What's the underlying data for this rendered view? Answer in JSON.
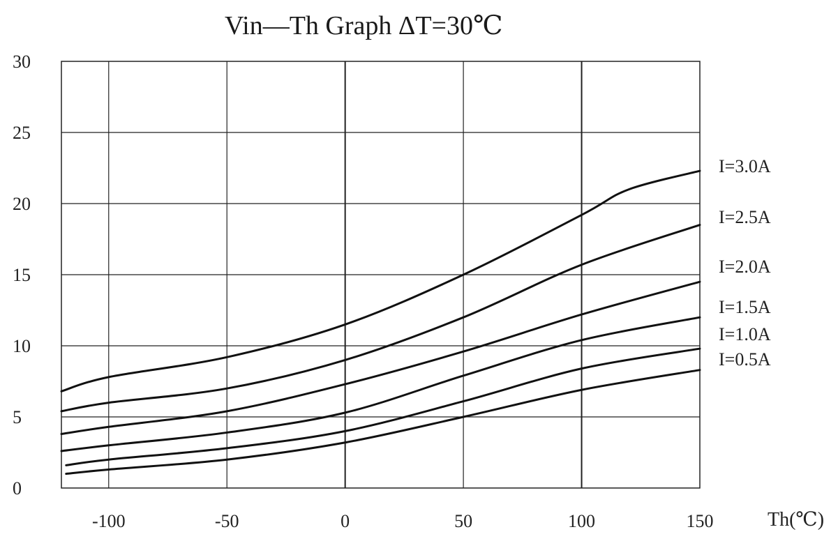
{
  "chart_data": {
    "type": "line",
    "title": "Vin—Th Graph  ΔT=30℃",
    "xlabel": "Th(℃)",
    "ylabel": "",
    "xlim": [
      -120,
      150
    ],
    "ylim": [
      0,
      30
    ],
    "x_ticks": [
      "-100",
      "-50",
      "0",
      "50",
      "100",
      "150"
    ],
    "x_tick_values": [
      -100,
      -50,
      0,
      50,
      100,
      150
    ],
    "y_ticks": [
      "0",
      "5",
      "10",
      "15",
      "20",
      "25",
      "30"
    ],
    "y_tick_values": [
      0,
      5,
      10,
      15,
      20,
      25,
      30
    ],
    "grid": true,
    "legend": "inline labels at right end of curves",
    "series": [
      {
        "name": "I=3.0A",
        "x": [
          -120,
          -100,
          -50,
          0,
          50,
          100,
          120,
          150
        ],
        "y": [
          6.8,
          7.8,
          9.2,
          11.5,
          15.0,
          19.2,
          21.0,
          22.3
        ]
      },
      {
        "name": "I=2.5A",
        "x": [
          -120,
          -100,
          -50,
          0,
          50,
          100,
          150
        ],
        "y": [
          5.4,
          6.0,
          7.0,
          9.0,
          12.0,
          15.7,
          18.5
        ]
      },
      {
        "name": "I=2.0A",
        "x": [
          -120,
          -100,
          -50,
          0,
          50,
          100,
          150
        ],
        "y": [
          3.8,
          4.3,
          5.4,
          7.3,
          9.6,
          12.2,
          14.5
        ]
      },
      {
        "name": "I=1.5A",
        "x": [
          -120,
          -100,
          -50,
          0,
          50,
          100,
          150
        ],
        "y": [
          2.6,
          3.0,
          3.9,
          5.3,
          7.9,
          10.4,
          12.0
        ]
      },
      {
        "name": "I=1.0A",
        "x": [
          -118,
          -100,
          -50,
          0,
          50,
          100,
          150
        ],
        "y": [
          1.6,
          2.0,
          2.8,
          4.0,
          6.1,
          8.4,
          9.8
        ]
      },
      {
        "name": "I=0.5A",
        "x": [
          -118,
          -100,
          -50,
          0,
          50,
          100,
          150
        ],
        "y": [
          1.0,
          1.3,
          2.0,
          3.2,
          5.0,
          6.9,
          8.3
        ]
      }
    ],
    "colors": {
      "line": "#111111",
      "grid": "#222222"
    }
  }
}
